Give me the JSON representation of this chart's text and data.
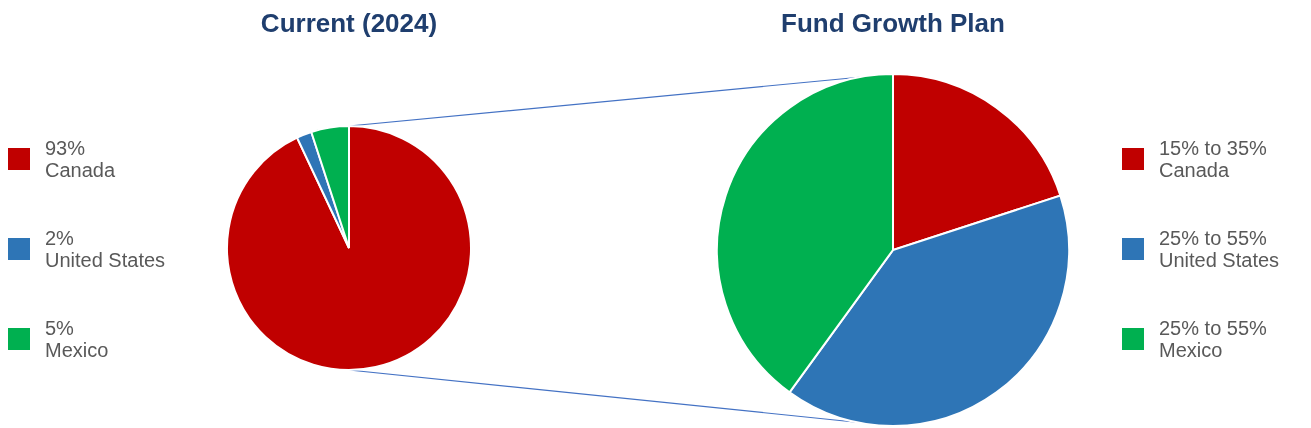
{
  "chart_data": [
    {
      "type": "pie",
      "title": "Current (2024)",
      "categories": [
        "Canada",
        "United States",
        "Mexico"
      ],
      "values": [
        93,
        2,
        5
      ],
      "value_labels": [
        "93%",
        "2%",
        "5%"
      ],
      "colors": [
        "#c00000",
        "#2e75b6",
        "#00b050"
      ],
      "legend": "left"
    },
    {
      "type": "pie",
      "title": "Fund Growth Plan",
      "categories": [
        "Canada",
        "United States",
        "Mexico"
      ],
      "values": [
        20,
        40,
        40
      ],
      "annotations": [
        "15% to 35%",
        "25% to 55%",
        "25% to 55%"
      ],
      "colors": [
        "#c00000",
        "#2e75b6",
        "#00b050"
      ],
      "legend": "right"
    }
  ]
}
